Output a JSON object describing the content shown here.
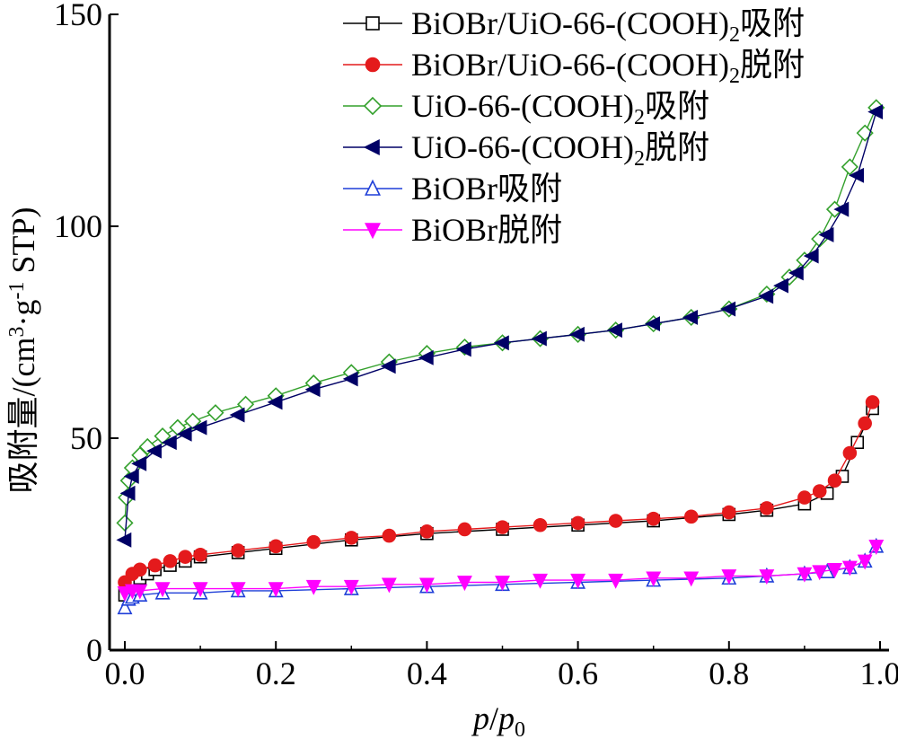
{
  "chart_data": {
    "type": "line",
    "xlabel": "p/p0",
    "xlabel_parts": {
      "base": "p",
      "slash": "/",
      "base2": "p",
      "sub": "0"
    },
    "ylabel": "吸附量/(cm3·g-1 STP)",
    "ylabel_parts": {
      "pre": "吸附量/(cm",
      "sup1": "3",
      "mid": "·g",
      "sup2": "-1",
      "post": " STP)"
    },
    "xlim": [
      -0.02,
      1.0
    ],
    "ylim": [
      0,
      150
    ],
    "xticks": [
      "0.0",
      "0.2",
      "0.4",
      "0.6",
      "0.8",
      "1.0"
    ],
    "yticks": [
      "0",
      "50",
      "100",
      "150"
    ],
    "legend_position": "top-right",
    "series": [
      {
        "name": "BiOBr/UiO-66-(COOH)2吸附",
        "label_parts": [
          "BiOBr/UiO-66-(COOH)",
          "2",
          "吸附"
        ],
        "color": "#000000",
        "marker": "square",
        "filled": false,
        "x": [
          0.0,
          0.005,
          0.01,
          0.02,
          0.03,
          0.04,
          0.06,
          0.08,
          0.1,
          0.15,
          0.2,
          0.3,
          0.4,
          0.5,
          0.6,
          0.7,
          0.8,
          0.85,
          0.9,
          0.93,
          0.95,
          0.97,
          0.99
        ],
        "y": [
          13,
          15,
          16,
          17,
          18,
          19,
          20,
          21,
          22,
          23,
          24,
          26,
          27.5,
          28.5,
          29.5,
          30.5,
          32,
          33,
          34.5,
          37,
          41,
          49,
          57
        ]
      },
      {
        "name": "BiOBr/UiO-66-(COOH)2脱附",
        "label_parts": [
          "BiOBr/UiO-66-(COOH)",
          "2",
          "脱附"
        ],
        "color": "#e41a1c",
        "marker": "circle",
        "filled": true,
        "x": [
          0.99,
          0.98,
          0.96,
          0.94,
          0.92,
          0.9,
          0.85,
          0.8,
          0.75,
          0.7,
          0.65,
          0.6,
          0.55,
          0.5,
          0.45,
          0.4,
          0.35,
          0.3,
          0.25,
          0.2,
          0.15,
          0.1,
          0.08,
          0.06,
          0.04,
          0.02,
          0.01,
          0.0
        ],
        "y": [
          58.5,
          53.5,
          46.5,
          40,
          37.5,
          36,
          33.5,
          32.5,
          31.5,
          31,
          30.5,
          30,
          29.5,
          29,
          28.5,
          28,
          27,
          26.5,
          25.5,
          24.5,
          23.5,
          22.5,
          22,
          21,
          20,
          19,
          18,
          16
        ]
      },
      {
        "name": "UiO-66-(COOH)2吸附",
        "label_parts": [
          "UiO-66-(COOH)",
          "2",
          "吸附"
        ],
        "color": "#33a02c",
        "marker": "diamond",
        "filled": false,
        "x": [
          0.0,
          0.002,
          0.005,
          0.01,
          0.02,
          0.03,
          0.05,
          0.07,
          0.09,
          0.12,
          0.16,
          0.2,
          0.25,
          0.3,
          0.35,
          0.4,
          0.45,
          0.5,
          0.55,
          0.6,
          0.65,
          0.7,
          0.75,
          0.8,
          0.85,
          0.88,
          0.9,
          0.92,
          0.94,
          0.96,
          0.98,
          0.995
        ],
        "y": [
          30,
          36,
          40,
          43,
          46,
          48,
          50.5,
          52.5,
          54,
          56,
          58,
          60,
          63,
          65.5,
          68,
          70,
          71.5,
          72.5,
          73.5,
          74.5,
          75.5,
          77,
          78.5,
          80.5,
          84,
          88,
          92,
          97,
          104,
          114,
          122,
          128
        ]
      },
      {
        "name": "UiO-66-(COOH)2脱附",
        "label_parts": [
          "UiO-66-(COOH)",
          "2",
          "脱附"
        ],
        "color": "#000066",
        "marker": "triangle-left",
        "filled": true,
        "x": [
          0.995,
          0.97,
          0.95,
          0.93,
          0.91,
          0.89,
          0.87,
          0.85,
          0.8,
          0.75,
          0.7,
          0.65,
          0.6,
          0.55,
          0.5,
          0.45,
          0.4,
          0.35,
          0.3,
          0.25,
          0.2,
          0.15,
          0.1,
          0.08,
          0.06,
          0.04,
          0.02,
          0.01,
          0.005,
          0.0
        ],
        "y": [
          127,
          112,
          104,
          98,
          93,
          89,
          86,
          83.5,
          80.5,
          78.5,
          77,
          75.5,
          74.5,
          73.5,
          72.5,
          71,
          69,
          67,
          64,
          61.5,
          58.5,
          55.5,
          52.5,
          51,
          49,
          47,
          44,
          41,
          37,
          26
        ]
      },
      {
        "name": "BiOBr吸附",
        "label_parts": [
          "BiOBr",
          "",
          "吸附"
        ],
        "color": "#1f3fd8",
        "marker": "triangle-up",
        "filled": false,
        "x": [
          0.0,
          0.005,
          0.01,
          0.02,
          0.05,
          0.1,
          0.15,
          0.2,
          0.3,
          0.4,
          0.5,
          0.6,
          0.7,
          0.8,
          0.85,
          0.9,
          0.93,
          0.96,
          0.98,
          0.995
        ],
        "y": [
          10,
          12,
          12.5,
          13,
          13.5,
          13.5,
          14,
          14,
          14.5,
          15,
          15.5,
          16,
          16.5,
          17,
          17.5,
          18,
          18.5,
          19.5,
          21,
          24.5
        ]
      },
      {
        "name": "BiOBr脱附",
        "label_parts": [
          "BiOBr",
          "",
          "脱附"
        ],
        "color": "#ff00ff",
        "marker": "triangle-down",
        "filled": true,
        "x": [
          0.995,
          0.98,
          0.96,
          0.94,
          0.92,
          0.9,
          0.85,
          0.8,
          0.75,
          0.7,
          0.65,
          0.6,
          0.55,
          0.5,
          0.45,
          0.4,
          0.35,
          0.3,
          0.25,
          0.2,
          0.15,
          0.1,
          0.05,
          0.02,
          0.01,
          0.0
        ],
        "y": [
          24.5,
          21,
          19.5,
          19,
          18.5,
          18,
          17.5,
          17.5,
          17,
          17,
          16.5,
          16.5,
          16.5,
          16,
          16,
          15.5,
          15.5,
          15,
          15,
          14.5,
          14.5,
          14.5,
          14.5,
          14,
          14,
          13.5
        ]
      }
    ]
  }
}
